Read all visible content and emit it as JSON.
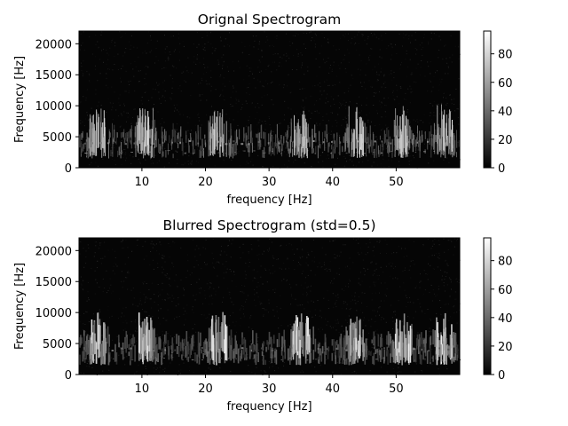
{
  "chart_data": [
    {
      "type": "heatmap",
      "title": "Orignal Spectrogram",
      "xlabel": "frequency [Hz]",
      "ylabel": "Frequency [Hz]",
      "xlim": [
        0.1,
        60
      ],
      "ylim": [
        0,
        22050
      ],
      "xticks": [
        10,
        20,
        30,
        40,
        50
      ],
      "yticks": [
        0,
        5000,
        10000,
        15000,
        20000
      ],
      "colormap": "gray",
      "colorbar": {
        "min": 0,
        "max": 96,
        "ticks": [
          0,
          20,
          40,
          60,
          80
        ]
      },
      "bright_clusters_x": [
        3,
        10.5,
        22,
        35,
        43.5,
        51,
        57.5
      ],
      "energy_band_hz": [
        1500,
        8000
      ]
    },
    {
      "type": "heatmap",
      "title": "Blurred Spectrogram (std=0.5)",
      "xlabel": "frequency [Hz]",
      "ylabel": "Frequency [Hz]",
      "xlim": [
        0.1,
        60
      ],
      "ylim": [
        0,
        22050
      ],
      "xticks": [
        10,
        20,
        30,
        40,
        50
      ],
      "yticks": [
        0,
        5000,
        10000,
        15000,
        20000
      ],
      "colormap": "gray",
      "colorbar": {
        "min": 0,
        "max": 96,
        "ticks": [
          0,
          20,
          40,
          60,
          80
        ]
      },
      "bright_clusters_x": [
        3,
        10.5,
        22,
        35,
        43.5,
        51,
        57.5
      ],
      "energy_band_hz": [
        1500,
        8000
      ]
    }
  ]
}
